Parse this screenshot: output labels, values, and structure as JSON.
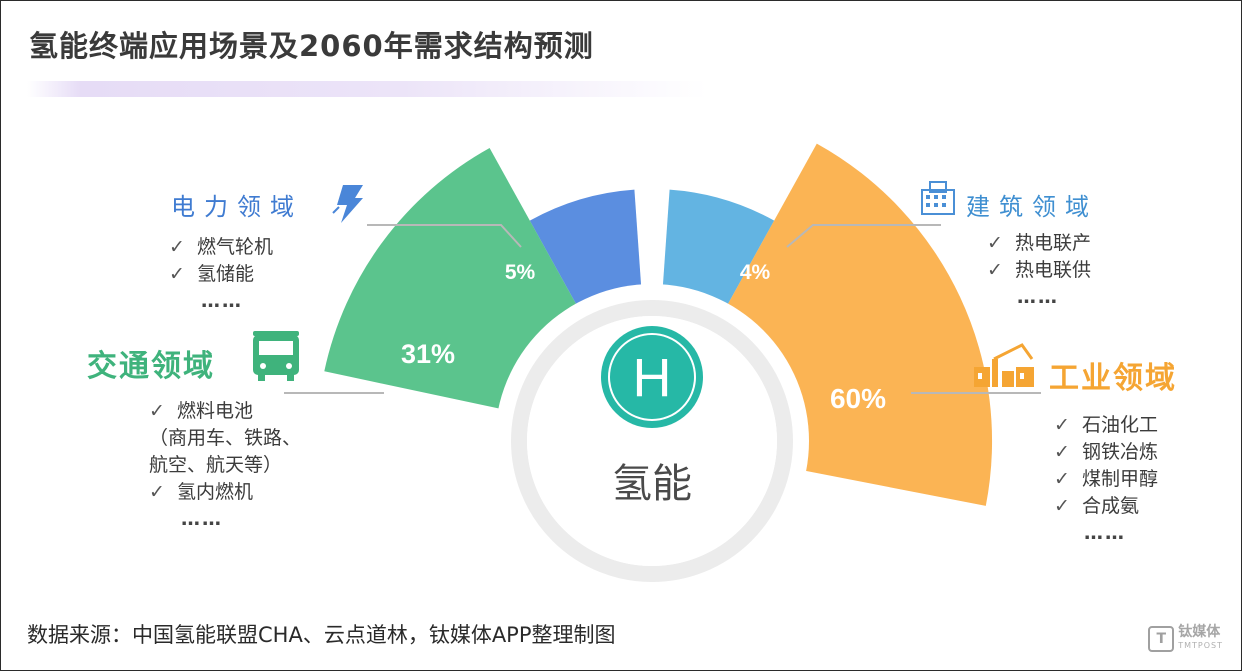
{
  "title": "氢能终端应用场景及2060年需求结构预测",
  "center": {
    "letter": "H",
    "label": "氢能"
  },
  "colors": {
    "power": "#5b8ee0",
    "transport": "#5bc48d",
    "building": "#63b4e2",
    "industry": "#fbb454",
    "power_title": "#3f7bd1",
    "transport_title": "#3fb37c",
    "building_title": "#3f8fd1",
    "industry_title": "#f5a533",
    "hub": "#26b8a6"
  },
  "chart_data": {
    "type": "pie",
    "title": "氢能终端应用场景及2060年需求结构预测",
    "slices": [
      {
        "key": "power",
        "label": "电力领域",
        "value": 5,
        "value_label": "5%"
      },
      {
        "key": "transport",
        "label": "交通领域",
        "value": 31,
        "value_label": "31%"
      },
      {
        "key": "building",
        "label": "建筑领域",
        "value": 4,
        "value_label": "4%"
      },
      {
        "key": "industry",
        "label": "工业领域",
        "value": 60,
        "value_label": "60%"
      }
    ]
  },
  "sections": {
    "power": {
      "title": "电力领域",
      "icon": "lightning-icon",
      "items": [
        "燃气轮机",
        "氢储能"
      ],
      "more": "……"
    },
    "transport": {
      "title": "交通领域",
      "icon": "bus-icon",
      "items": [
        "燃料电池",
        "（商用车、铁路、",
        "航空、航天等）",
        "氢内燃机"
      ],
      "more": "……"
    },
    "building": {
      "title": "建筑领域",
      "icon": "building-icon",
      "items": [
        "热电联产",
        "热电联供"
      ],
      "more": "……"
    },
    "industry": {
      "title": "工业领域",
      "icon": "factory-icon",
      "items": [
        "石油化工",
        "钢铁冶炼",
        "煤制甲醇",
        "合成氨"
      ],
      "more": "……"
    }
  },
  "check_mark": "✓",
  "source": "数据来源：中国氢能联盟CHA、云点道林，钛媒体APP整理制图",
  "watermark": {
    "brand": "钛媒体",
    "sub": "TMTPOST",
    "logo_letter": "T"
  }
}
